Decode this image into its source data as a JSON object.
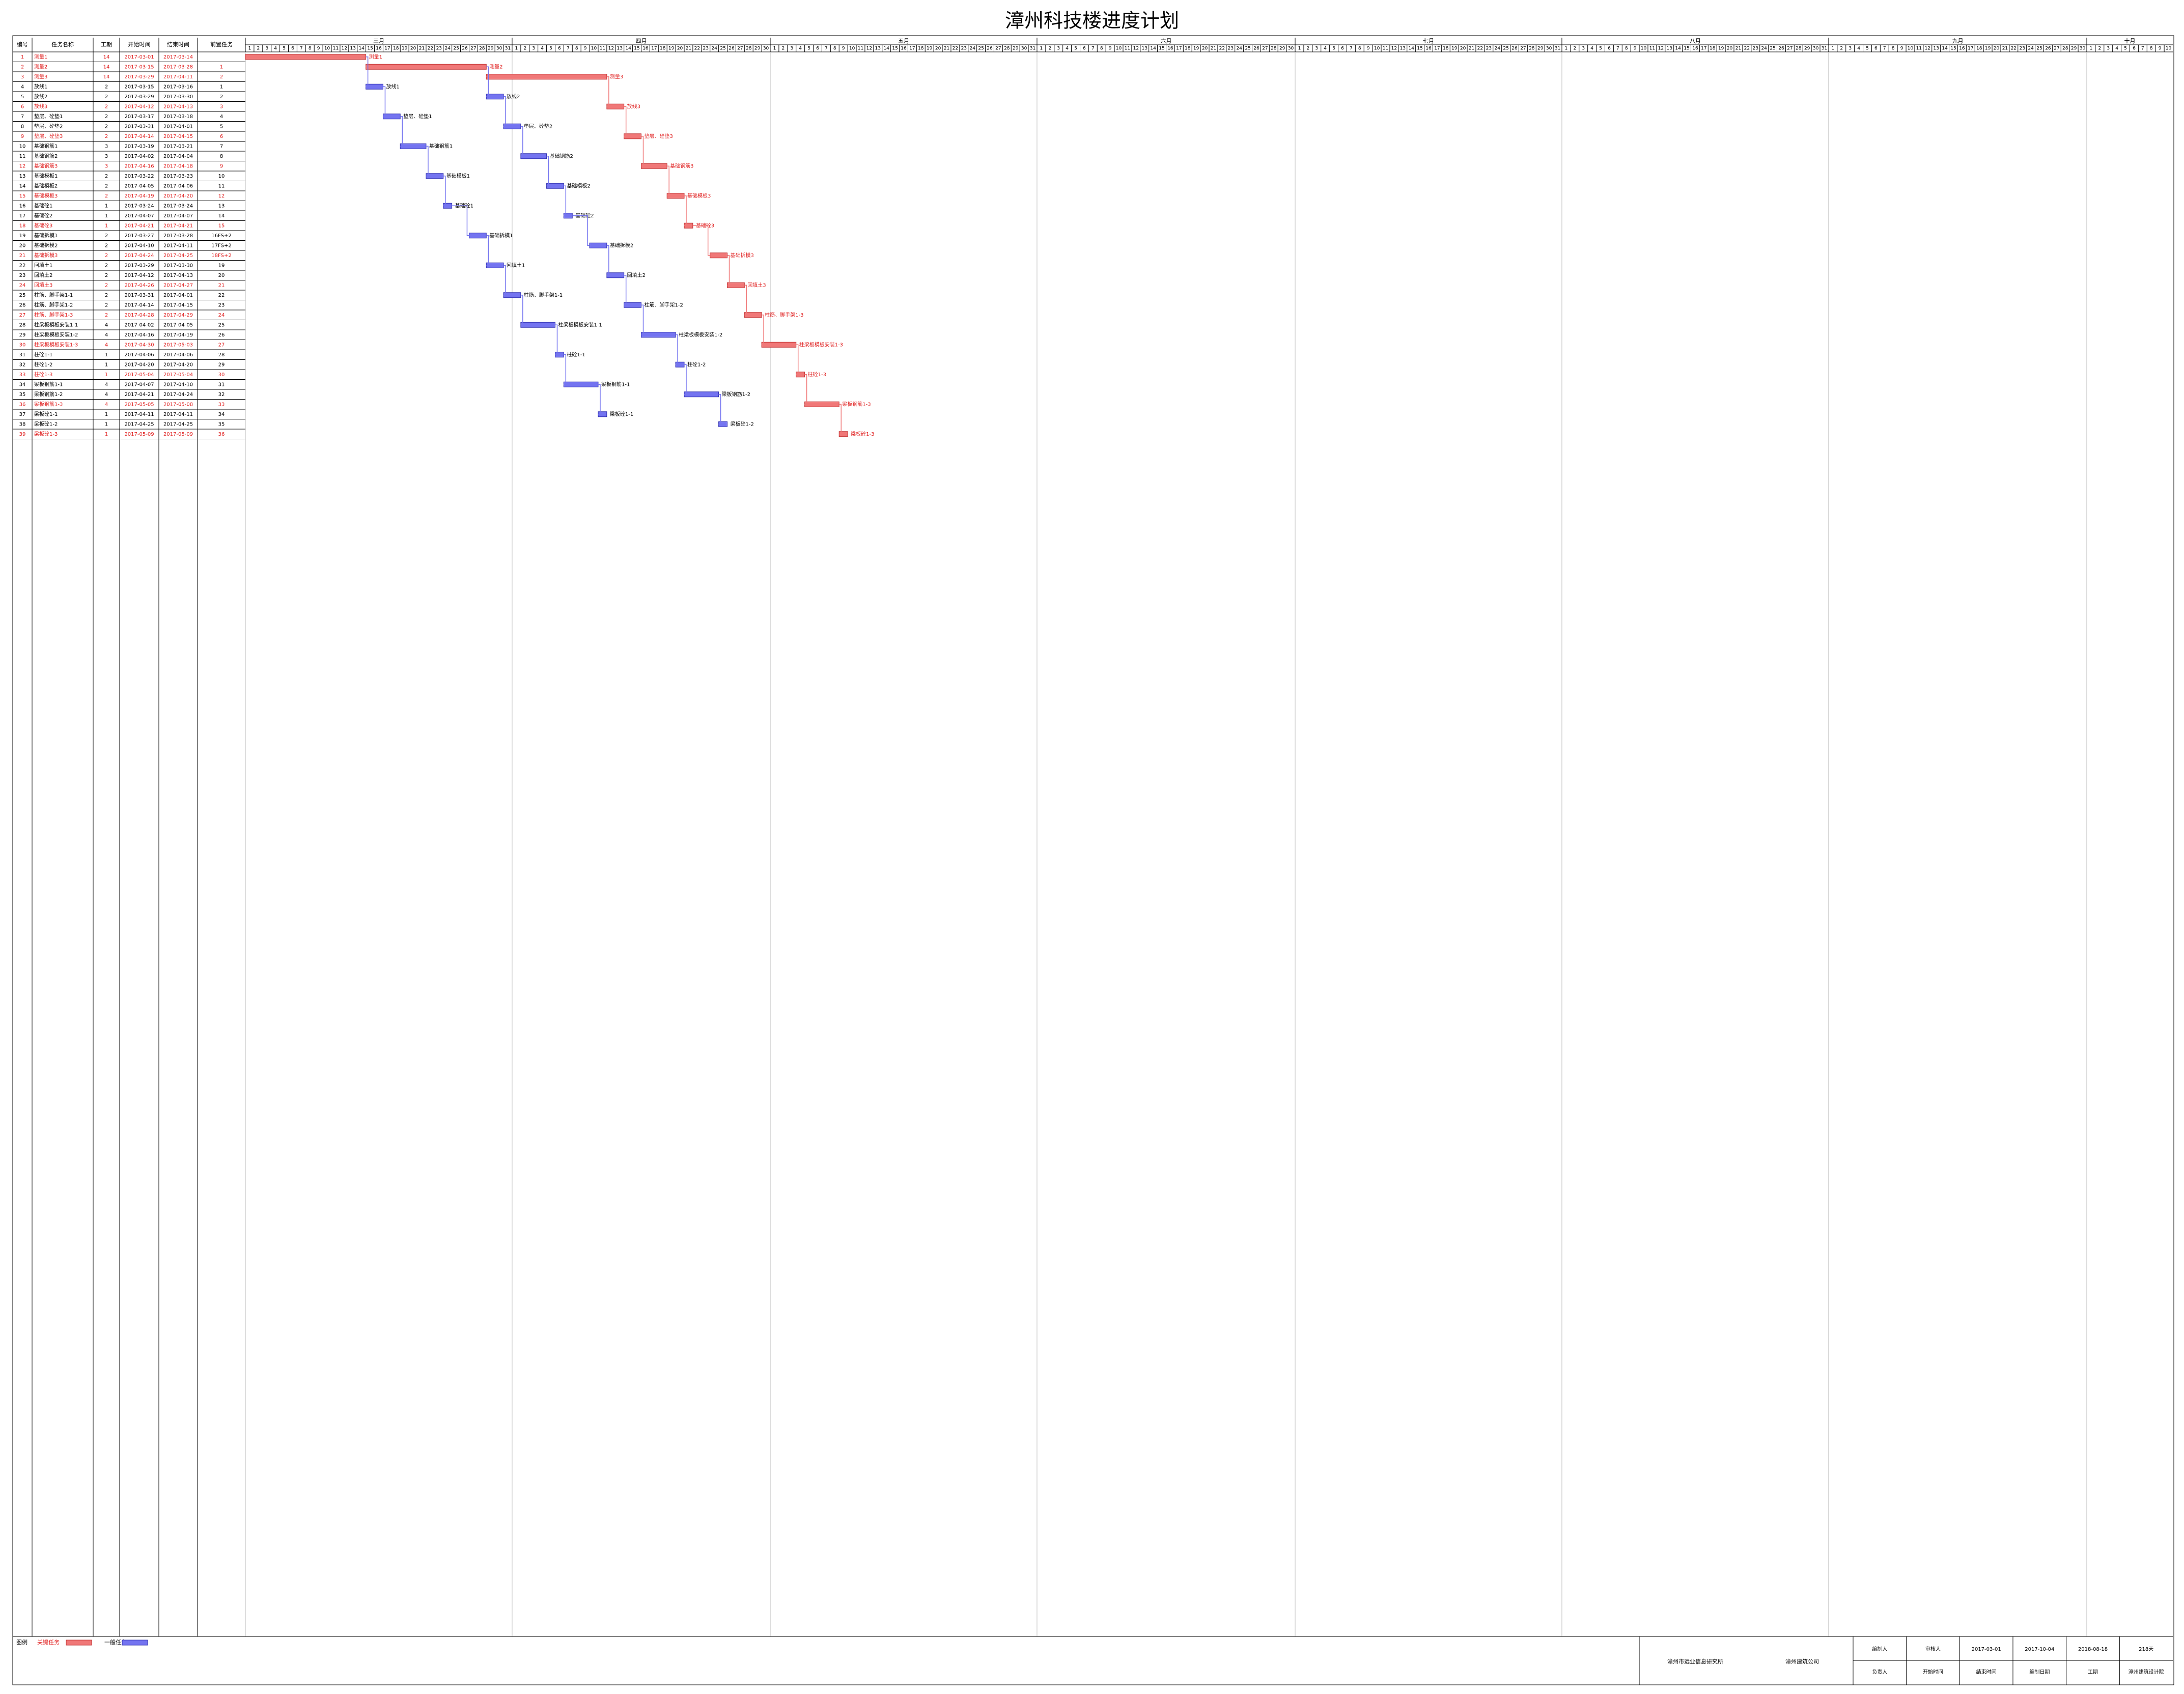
{
  "chart_data": {
    "type": "gantt",
    "title": "漳州科技楼进度计划",
    "columns": [
      "编号",
      "任务名称",
      "工期",
      "开始时间",
      "结束时间",
      "前置任务"
    ],
    "critical_color": "#f07878",
    "normal_color": "#7474f0",
    "critical_text_color": "#e02020",
    "months": [
      {
        "name": "三月",
        "days": [
          1,
          2,
          3,
          4,
          5,
          6,
          7,
          8,
          9,
          10,
          11,
          12,
          13,
          14,
          15,
          16,
          17,
          18,
          19,
          20,
          21,
          22,
          23,
          24,
          25,
          26,
          27,
          28,
          29,
          30,
          31
        ]
      },
      {
        "name": "四月",
        "days": [
          1,
          2,
          3,
          4,
          5,
          6,
          7,
          8,
          9,
          10,
          11,
          12,
          13,
          14,
          15,
          16,
          17,
          18,
          19,
          20,
          21,
          22,
          23,
          24,
          25,
          26,
          27,
          28,
          29,
          30
        ]
      },
      {
        "name": "五月",
        "days": [
          1,
          2,
          3,
          4,
          5,
          6,
          7,
          8,
          9,
          10,
          11,
          12,
          13,
          14,
          15,
          16,
          17,
          18,
          19,
          20,
          21,
          22,
          23,
          24,
          25,
          26,
          27,
          28,
          29,
          30,
          31
        ]
      },
      {
        "name": "六月",
        "days": [
          1,
          2,
          3,
          4,
          5,
          6,
          7,
          8,
          9,
          10,
          11,
          12,
          13,
          14,
          15,
          16,
          17,
          18,
          19,
          20,
          21,
          22,
          23,
          24,
          25,
          26,
          27,
          28,
          29,
          30
        ]
      },
      {
        "name": "七月",
        "days": [
          1,
          2,
          3,
          4,
          5,
          6,
          7,
          8,
          9,
          10,
          11,
          12,
          13,
          14,
          15,
          16,
          17,
          18,
          19,
          20,
          21,
          22,
          23,
          24,
          25,
          26,
          27,
          28,
          29,
          30,
          31
        ]
      },
      {
        "name": "八月",
        "days": [
          1,
          2,
          3,
          4,
          5,
          6,
          7,
          8,
          9,
          10,
          11,
          12,
          13,
          14,
          15,
          16,
          17,
          18,
          19,
          20,
          21,
          22,
          23,
          24,
          25,
          26,
          27,
          28,
          29,
          30,
          31
        ]
      },
      {
        "name": "九月",
        "days": [
          1,
          2,
          3,
          4,
          5,
          6,
          7,
          8,
          9,
          10,
          11,
          12,
          13,
          14,
          15,
          16,
          17,
          18,
          19,
          20,
          21,
          22,
          23,
          24,
          25,
          26,
          27,
          28,
          29,
          30
        ]
      },
      {
        "name": "十月",
        "days": [
          1,
          2,
          3,
          4,
          5,
          6,
          7,
          8,
          9,
          10
        ]
      }
    ],
    "tasks": [
      {
        "id": 1,
        "name": "测量1",
        "duration": 14,
        "start": "2017-03-01",
        "end": "2017-03-14",
        "pred": "",
        "critical": true
      },
      {
        "id": 2,
        "name": "测量2",
        "duration": 14,
        "start": "2017-03-15",
        "end": "2017-03-28",
        "pred": "1",
        "critical": true
      },
      {
        "id": 3,
        "name": "测量3",
        "duration": 14,
        "start": "2017-03-29",
        "end": "2017-04-11",
        "pred": "2",
        "critical": true
      },
      {
        "id": 4,
        "name": "放线1",
        "duration": 2,
        "start": "2017-03-15",
        "end": "2017-03-16",
        "pred": "1",
        "critical": false
      },
      {
        "id": 5,
        "name": "放线2",
        "duration": 2,
        "start": "2017-03-29",
        "end": "2017-03-30",
        "pred": "2",
        "critical": false
      },
      {
        "id": 6,
        "name": "放线3",
        "duration": 2,
        "start": "2017-04-12",
        "end": "2017-04-13",
        "pred": "3",
        "critical": true
      },
      {
        "id": 7,
        "name": "垫层、砼垫1",
        "duration": 2,
        "start": "2017-03-17",
        "end": "2017-03-18",
        "pred": "4",
        "critical": false
      },
      {
        "id": 8,
        "name": "垫层、砼垫2",
        "duration": 2,
        "start": "2017-03-31",
        "end": "2017-04-01",
        "pred": "5",
        "critical": false
      },
      {
        "id": 9,
        "name": "垫层、砼垫3",
        "duration": 2,
        "start": "2017-04-14",
        "end": "2017-04-15",
        "pred": "6",
        "critical": true
      },
      {
        "id": 10,
        "name": "基础钢筋1",
        "duration": 3,
        "start": "2017-03-19",
        "end": "2017-03-21",
        "pred": "7",
        "critical": false
      },
      {
        "id": 11,
        "name": "基础钢筋2",
        "duration": 3,
        "start": "2017-04-02",
        "end": "2017-04-04",
        "pred": "8",
        "critical": false
      },
      {
        "id": 12,
        "name": "基础钢筋3",
        "duration": 3,
        "start": "2017-04-16",
        "end": "2017-04-18",
        "pred": "9",
        "critical": true
      },
      {
        "id": 13,
        "name": "基础模板1",
        "duration": 2,
        "start": "2017-03-22",
        "end": "2017-03-23",
        "pred": "10",
        "critical": false
      },
      {
        "id": 14,
        "name": "基础模板2",
        "duration": 2,
        "start": "2017-04-05",
        "end": "2017-04-06",
        "pred": "11",
        "critical": false
      },
      {
        "id": 15,
        "name": "基础模板3",
        "duration": 2,
        "start": "2017-04-19",
        "end": "2017-04-20",
        "pred": "12",
        "critical": true
      },
      {
        "id": 16,
        "name": "基础砼1",
        "duration": 1,
        "start": "2017-03-24",
        "end": "2017-03-24",
        "pred": "13",
        "critical": false
      },
      {
        "id": 17,
        "name": "基础砼2",
        "duration": 1,
        "start": "2017-04-07",
        "end": "2017-04-07",
        "pred": "14",
        "critical": false
      },
      {
        "id": 18,
        "name": "基础砼3",
        "duration": 1,
        "start": "2017-04-21",
        "end": "2017-04-21",
        "pred": "15",
        "critical": true
      },
      {
        "id": 19,
        "name": "基础拆模1",
        "duration": 2,
        "start": "2017-03-27",
        "end": "2017-03-28",
        "pred": "16FS+2",
        "critical": false
      },
      {
        "id": 20,
        "name": "基础拆模2",
        "duration": 2,
        "start": "2017-04-10",
        "end": "2017-04-11",
        "pred": "17FS+2",
        "critical": false
      },
      {
        "id": 21,
        "name": "基础拆模3",
        "duration": 2,
        "start": "2017-04-24",
        "end": "2017-04-25",
        "pred": "18FS+2",
        "critical": true
      },
      {
        "id": 22,
        "name": "回填土1",
        "duration": 2,
        "start": "2017-03-29",
        "end": "2017-03-30",
        "pred": "19",
        "critical": false
      },
      {
        "id": 23,
        "name": "回填土2",
        "duration": 2,
        "start": "2017-04-12",
        "end": "2017-04-13",
        "pred": "20",
        "critical": false
      },
      {
        "id": 24,
        "name": "回填土3",
        "duration": 2,
        "start": "2017-04-26",
        "end": "2017-04-27",
        "pred": "21",
        "critical": true
      },
      {
        "id": 25,
        "name": "柱筋、脚手架1-1",
        "duration": 2,
        "start": "2017-03-31",
        "end": "2017-04-01",
        "pred": "22",
        "critical": false
      },
      {
        "id": 26,
        "name": "柱筋、脚手架1-2",
        "duration": 2,
        "start": "2017-04-14",
        "end": "2017-04-15",
        "pred": "23",
        "critical": false
      },
      {
        "id": 27,
        "name": "柱筋、脚手架1-3",
        "duration": 2,
        "start": "2017-04-28",
        "end": "2017-04-29",
        "pred": "24",
        "critical": true
      },
      {
        "id": 28,
        "name": "柱梁板模板安装1-1",
        "duration": 4,
        "start": "2017-04-02",
        "end": "2017-04-05",
        "pred": "25",
        "critical": false
      },
      {
        "id": 29,
        "name": "柱梁板模板安装1-2",
        "duration": 4,
        "start": "2017-04-16",
        "end": "2017-04-19",
        "pred": "26",
        "critical": false
      },
      {
        "id": 30,
        "name": "柱梁板模板安装1-3",
        "duration": 4,
        "start": "2017-04-30",
        "end": "2017-05-03",
        "pred": "27",
        "critical": true
      },
      {
        "id": 31,
        "name": "柱砼1-1",
        "duration": 1,
        "start": "2017-04-06",
        "end": "2017-04-06",
        "pred": "28",
        "critical": false
      },
      {
        "id": 32,
        "name": "柱砼1-2",
        "duration": 1,
        "start": "2017-04-20",
        "end": "2017-04-20",
        "pred": "29",
        "critical": false
      },
      {
        "id": 33,
        "name": "柱砼1-3",
        "duration": 1,
        "start": "2017-05-04",
        "end": "2017-05-04",
        "pred": "30",
        "critical": true
      },
      {
        "id": 34,
        "name": "梁板钢筋1-1",
        "duration": 4,
        "start": "2017-04-07",
        "end": "2017-04-10",
        "pred": "31",
        "critical": false
      },
      {
        "id": 35,
        "name": "梁板钢筋1-2",
        "duration": 4,
        "start": "2017-04-21",
        "end": "2017-04-24",
        "pred": "32",
        "critical": false
      },
      {
        "id": 36,
        "name": "梁板钢筋1-3",
        "duration": 4,
        "start": "2017-05-05",
        "end": "2017-05-08",
        "pred": "33",
        "critical": true
      },
      {
        "id": 37,
        "name": "梁板砼1-1",
        "duration": 1,
        "start": "2017-04-11",
        "end": "2017-04-11",
        "pred": "34",
        "critical": false
      },
      {
        "id": 38,
        "name": "梁板砼1-2",
        "duration": 1,
        "start": "2017-04-25",
        "end": "2017-04-25",
        "pred": "35",
        "critical": false
      },
      {
        "id": 39,
        "name": "梁板砼1-3",
        "duration": 1,
        "start": "2017-05-09",
        "end": "2017-05-09",
        "pred": "36",
        "critical": true
      }
    ],
    "legend": {
      "title": "图例",
      "critical": "关键任务",
      "normal": "一般任务"
    },
    "footer": {
      "org": "漳州市远业信息研究所",
      "company": "漳州建筑公司",
      "cells": [
        "编制人",
        "负责人",
        "审核人",
        "开始时间",
        "2017-03-01",
        "结束时间",
        "2017-10-04",
        "编制日期",
        "2018-08-18",
        "工期",
        "218天",
        "漳州建筑设计院"
      ]
    }
  }
}
